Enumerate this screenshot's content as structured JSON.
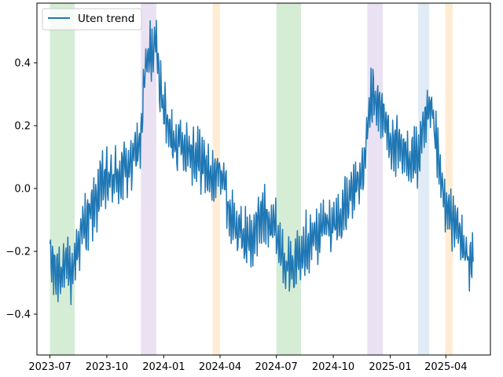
{
  "chart_data": {
    "type": "line",
    "title": "",
    "xlabel": "",
    "ylabel": "",
    "x_axis": "date",
    "x_start": "2023-07-01",
    "x_end": "2025-05-15",
    "xlim": [
      "2023-06-10",
      "2025-06-12"
    ],
    "ylim": [
      -0.53,
      0.59
    ],
    "xticks": [
      "2023-07-01",
      "2023-10-01",
      "2024-01-01",
      "2024-04-01",
      "2024-07-01",
      "2024-10-01",
      "2025-01-01",
      "2025-04-01"
    ],
    "xtick_labels": [
      "2023-07",
      "2023-10",
      "2024-01",
      "2024-04",
      "2024-07",
      "2024-10",
      "2025-01",
      "2025-04"
    ],
    "yticks": [
      -0.4,
      -0.2,
      0.0,
      0.2,
      0.4
    ],
    "ytick_labels": [
      "−0.4",
      "−0.2",
      "0.0",
      "0.2",
      "0.4"
    ],
    "grid": false,
    "legend": {
      "placement": "top-left",
      "entries": [
        "Uten trend"
      ]
    },
    "series": [
      {
        "name": "Uten trend",
        "color": "#1f77b4",
        "anchors": [
          [
            "2023-07-01",
            -0.22
          ],
          [
            "2023-07-10",
            -0.27
          ],
          [
            "2023-07-22",
            -0.25
          ],
          [
            "2023-08-05",
            -0.27
          ],
          [
            "2023-08-15",
            -0.18
          ],
          [
            "2023-08-25",
            -0.12
          ],
          [
            "2023-09-10",
            -0.06
          ],
          [
            "2023-09-25",
            0.02
          ],
          [
            "2023-10-10",
            0.03
          ],
          [
            "2023-10-25",
            0.05
          ],
          [
            "2023-11-10",
            0.08
          ],
          [
            "2023-11-25",
            0.16
          ],
          [
            "2023-12-01",
            0.36
          ],
          [
            "2023-12-10",
            0.43
          ],
          [
            "2023-12-20",
            0.45
          ],
          [
            "2023-12-28",
            0.3
          ],
          [
            "2024-01-10",
            0.17
          ],
          [
            "2024-01-25",
            0.15
          ],
          [
            "2024-02-10",
            0.13
          ],
          [
            "2024-03-01",
            0.09
          ],
          [
            "2024-03-20",
            0.03
          ],
          [
            "2024-04-05",
            0.06
          ],
          [
            "2024-04-15",
            -0.07
          ],
          [
            "2024-05-01",
            -0.14
          ],
          [
            "2024-05-20",
            -0.17
          ],
          [
            "2024-06-10",
            -0.08
          ],
          [
            "2024-06-25",
            -0.1
          ],
          [
            "2024-07-10",
            -0.2
          ],
          [
            "2024-07-25",
            -0.27
          ],
          [
            "2024-08-10",
            -0.18
          ],
          [
            "2024-08-25",
            -0.17
          ],
          [
            "2024-09-15",
            -0.12
          ],
          [
            "2024-10-10",
            -0.1
          ],
          [
            "2024-11-01",
            -0.02
          ],
          [
            "2024-11-20",
            0.06
          ],
          [
            "2024-11-28",
            0.26
          ],
          [
            "2024-12-05",
            0.3
          ],
          [
            "2024-12-15",
            0.26
          ],
          [
            "2025-01-05",
            0.14
          ],
          [
            "2025-01-25",
            0.1
          ],
          [
            "2025-02-15",
            0.1
          ],
          [
            "2025-03-01",
            0.22
          ],
          [
            "2025-03-10",
            0.24
          ],
          [
            "2025-03-20",
            0.08
          ],
          [
            "2025-04-01",
            -0.08
          ],
          [
            "2025-04-15",
            -0.1
          ],
          [
            "2025-05-01",
            -0.2
          ],
          [
            "2025-05-15",
            -0.24
          ]
        ],
        "noise_amplitude": 0.07,
        "points_per_day": 1
      }
    ],
    "shaded_spans": [
      {
        "start": "2023-07-01",
        "end": "2023-08-10",
        "color": "#2ca02c"
      },
      {
        "start": "2023-11-25",
        "end": "2023-12-20",
        "color": "#9467bd"
      },
      {
        "start": "2024-03-20",
        "end": "2024-04-01",
        "color": "#ff9f1c"
      },
      {
        "start": "2024-07-01",
        "end": "2024-08-10",
        "color": "#2ca02c"
      },
      {
        "start": "2024-11-25",
        "end": "2024-12-20",
        "color": "#9467bd"
      },
      {
        "start": "2025-02-15",
        "end": "2025-03-05",
        "color": "#6699cc"
      },
      {
        "start": "2025-03-31",
        "end": "2025-04-12",
        "color": "#ff9f1c"
      }
    ]
  }
}
